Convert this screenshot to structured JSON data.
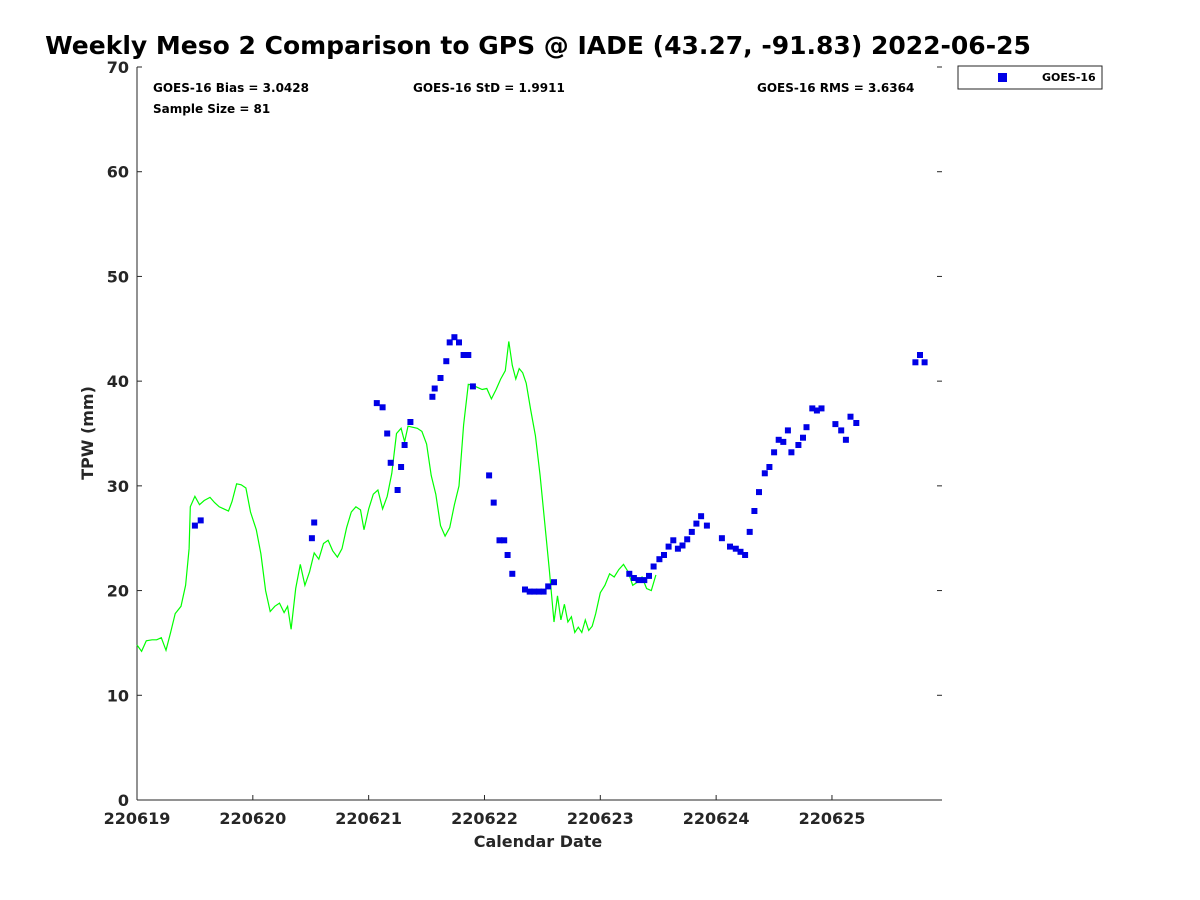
{
  "chart_data": {
    "type": "line",
    "title": "Weekly Meso 2 Comparison to GPS @ IADE (43.27, -91.83) 2022-06-25",
    "xlabel": "Calendar Date",
    "ylabel": "TPW (mm)",
    "xlim": [
      0,
      6.95
    ],
    "ylim": [
      0,
      70
    ],
    "x_ticks": [
      {
        "value": 0,
        "label": "220619"
      },
      {
        "value": 1,
        "label": "220620"
      },
      {
        "value": 2,
        "label": "220621"
      },
      {
        "value": 3,
        "label": "220622"
      },
      {
        "value": 4,
        "label": "220623"
      },
      {
        "value": 5,
        "label": "220624"
      },
      {
        "value": 6,
        "label": "220625"
      }
    ],
    "y_ticks": [
      0,
      10,
      20,
      30,
      40,
      50,
      60,
      70
    ],
    "grid": false,
    "legend_position": "top-right",
    "stats": {
      "bias": "GOES-16 Bias = 3.0428",
      "std": "GOES-16 StD = 1.9911",
      "rms": "GOES-16 RMS = 3.6364",
      "sample": "Sample Size = 81"
    },
    "series": [
      {
        "name": "GOES-16",
        "kind": "scatter",
        "color": "#0000e6",
        "points": [
          [
            0.5,
            26.2
          ],
          [
            0.55,
            26.7
          ],
          [
            1.51,
            25.0
          ],
          [
            1.53,
            26.5
          ],
          [
            2.07,
            37.9
          ],
          [
            2.12,
            37.5
          ],
          [
            2.16,
            35.0
          ],
          [
            2.19,
            32.2
          ],
          [
            2.25,
            29.6
          ],
          [
            2.28,
            31.8
          ],
          [
            2.31,
            33.9
          ],
          [
            2.36,
            36.1
          ],
          [
            2.55,
            38.5
          ],
          [
            2.57,
            39.3
          ],
          [
            2.62,
            40.3
          ],
          [
            2.67,
            41.9
          ],
          [
            2.7,
            43.7
          ],
          [
            2.74,
            44.2
          ],
          [
            2.78,
            43.7
          ],
          [
            2.82,
            42.5
          ],
          [
            2.86,
            42.5
          ],
          [
            2.9,
            39.5
          ],
          [
            3.04,
            31.0
          ],
          [
            3.08,
            28.4
          ],
          [
            3.13,
            24.8
          ],
          [
            3.17,
            24.8
          ],
          [
            3.2,
            23.4
          ],
          [
            3.24,
            21.6
          ],
          [
            3.35,
            20.1
          ],
          [
            3.39,
            19.9
          ],
          [
            3.43,
            19.9
          ],
          [
            3.47,
            19.9
          ],
          [
            3.51,
            19.9
          ],
          [
            3.55,
            20.4
          ],
          [
            3.6,
            20.8
          ],
          [
            4.25,
            21.6
          ],
          [
            4.29,
            21.2
          ],
          [
            4.33,
            21.0
          ],
          [
            4.38,
            21.0
          ],
          [
            4.42,
            21.4
          ],
          [
            4.46,
            22.3
          ],
          [
            4.51,
            23.0
          ],
          [
            4.55,
            23.4
          ],
          [
            4.59,
            24.2
          ],
          [
            4.63,
            24.8
          ],
          [
            4.67,
            24.0
          ],
          [
            4.71,
            24.3
          ],
          [
            4.75,
            24.9
          ],
          [
            4.79,
            25.6
          ],
          [
            4.83,
            26.4
          ],
          [
            4.87,
            27.1
          ],
          [
            4.92,
            26.2
          ],
          [
            5.05,
            25.0
          ],
          [
            5.12,
            24.2
          ],
          [
            5.17,
            24.0
          ],
          [
            5.21,
            23.7
          ],
          [
            5.25,
            23.4
          ],
          [
            5.29,
            25.6
          ],
          [
            5.33,
            27.6
          ],
          [
            5.37,
            29.4
          ],
          [
            5.42,
            31.2
          ],
          [
            5.46,
            31.8
          ],
          [
            5.5,
            33.2
          ],
          [
            5.54,
            34.4
          ],
          [
            5.58,
            34.2
          ],
          [
            5.62,
            35.3
          ],
          [
            5.65,
            33.2
          ],
          [
            5.71,
            33.9
          ],
          [
            5.75,
            34.6
          ],
          [
            5.78,
            35.6
          ],
          [
            5.83,
            37.4
          ],
          [
            5.87,
            37.2
          ],
          [
            5.91,
            37.4
          ],
          [
            6.03,
            35.9
          ],
          [
            6.08,
            35.3
          ],
          [
            6.12,
            34.4
          ],
          [
            6.16,
            36.6
          ],
          [
            6.21,
            36.0
          ],
          [
            6.72,
            41.8
          ],
          [
            6.76,
            42.5
          ],
          [
            6.8,
            41.8
          ]
        ]
      },
      {
        "kind": "line",
        "color": "#00ff00",
        "points": [
          [
            0.0,
            14.8
          ],
          [
            0.04,
            14.2
          ],
          [
            0.08,
            15.2
          ],
          [
            0.13,
            15.3
          ],
          [
            0.17,
            15.3
          ],
          [
            0.21,
            15.5
          ],
          [
            0.25,
            14.3
          ],
          [
            0.29,
            16.0
          ],
          [
            0.33,
            17.8
          ],
          [
            0.38,
            18.5
          ],
          [
            0.42,
            20.5
          ],
          [
            0.45,
            24.0
          ],
          [
            0.46,
            28.0
          ],
          [
            0.5,
            29.0
          ],
          [
            0.54,
            28.2
          ],
          [
            0.58,
            28.6
          ],
          [
            0.63,
            28.9
          ],
          [
            0.67,
            28.4
          ],
          [
            0.71,
            28.0
          ],
          [
            0.75,
            27.8
          ],
          [
            0.79,
            27.6
          ],
          [
            0.82,
            28.5
          ],
          [
            0.86,
            30.2
          ],
          [
            0.9,
            30.1
          ],
          [
            0.94,
            29.8
          ],
          [
            0.98,
            27.5
          ],
          [
            1.03,
            25.8
          ],
          [
            1.07,
            23.5
          ],
          [
            1.11,
            20.0
          ],
          [
            1.15,
            18.0
          ],
          [
            1.19,
            18.5
          ],
          [
            1.23,
            18.8
          ],
          [
            1.27,
            17.9
          ],
          [
            1.3,
            18.5
          ],
          [
            1.33,
            16.3
          ],
          [
            1.37,
            20.2
          ],
          [
            1.41,
            22.5
          ],
          [
            1.45,
            20.5
          ],
          [
            1.49,
            21.8
          ],
          [
            1.53,
            23.6
          ],
          [
            1.57,
            23.0
          ],
          [
            1.61,
            24.5
          ],
          [
            1.65,
            24.8
          ],
          [
            1.69,
            23.8
          ],
          [
            1.73,
            23.2
          ],
          [
            1.77,
            24.0
          ],
          [
            1.81,
            26.0
          ],
          [
            1.85,
            27.5
          ],
          [
            1.89,
            28.0
          ],
          [
            1.93,
            27.7
          ],
          [
            1.96,
            25.8
          ],
          [
            2.0,
            27.8
          ],
          [
            2.04,
            29.2
          ],
          [
            2.08,
            29.6
          ],
          [
            2.12,
            27.8
          ],
          [
            2.16,
            29.0
          ],
          [
            2.2,
            31.2
          ],
          [
            2.24,
            35.0
          ],
          [
            2.28,
            35.5
          ],
          [
            2.31,
            34.2
          ],
          [
            2.34,
            35.7
          ],
          [
            2.42,
            35.5
          ],
          [
            2.46,
            35.2
          ],
          [
            2.5,
            34.0
          ],
          [
            2.54,
            31.0
          ],
          [
            2.58,
            29.2
          ],
          [
            2.62,
            26.2
          ],
          [
            2.66,
            25.2
          ],
          [
            2.7,
            26.0
          ],
          [
            2.74,
            28.2
          ],
          [
            2.78,
            30.0
          ],
          [
            2.82,
            35.8
          ],
          [
            2.86,
            39.7
          ],
          [
            2.9,
            39.6
          ],
          [
            2.94,
            39.4
          ],
          [
            2.98,
            39.2
          ],
          [
            3.02,
            39.3
          ],
          [
            3.06,
            38.3
          ],
          [
            3.1,
            39.2
          ],
          [
            3.14,
            40.2
          ],
          [
            3.18,
            41.0
          ],
          [
            3.21,
            43.8
          ],
          [
            3.24,
            41.5
          ],
          [
            3.27,
            40.2
          ],
          [
            3.3,
            41.2
          ],
          [
            3.33,
            40.8
          ],
          [
            3.36,
            39.8
          ],
          [
            3.4,
            37.2
          ],
          [
            3.44,
            34.8
          ],
          [
            3.48,
            31.0
          ],
          [
            3.52,
            26.5
          ],
          [
            3.56,
            22.0
          ],
          [
            3.6,
            17.0
          ],
          [
            3.63,
            19.5
          ],
          [
            3.66,
            17.2
          ],
          [
            3.69,
            18.7
          ],
          [
            3.72,
            17.0
          ],
          [
            3.75,
            17.5
          ],
          [
            3.78,
            16.0
          ],
          [
            3.81,
            16.5
          ],
          [
            3.84,
            16.0
          ],
          [
            3.87,
            17.2
          ],
          [
            3.9,
            16.2
          ],
          [
            3.93,
            16.6
          ],
          [
            3.96,
            17.8
          ],
          [
            4.0,
            19.8
          ],
          [
            4.04,
            20.5
          ],
          [
            4.08,
            21.6
          ],
          [
            4.12,
            21.3
          ],
          [
            4.16,
            22.0
          ],
          [
            4.2,
            22.5
          ],
          [
            4.24,
            21.8
          ],
          [
            4.28,
            20.5
          ],
          [
            4.32,
            20.8
          ],
          [
            4.36,
            21.3
          ],
          [
            4.4,
            20.2
          ],
          [
            4.44,
            20.0
          ],
          [
            4.48,
            21.5
          ]
        ]
      }
    ]
  }
}
